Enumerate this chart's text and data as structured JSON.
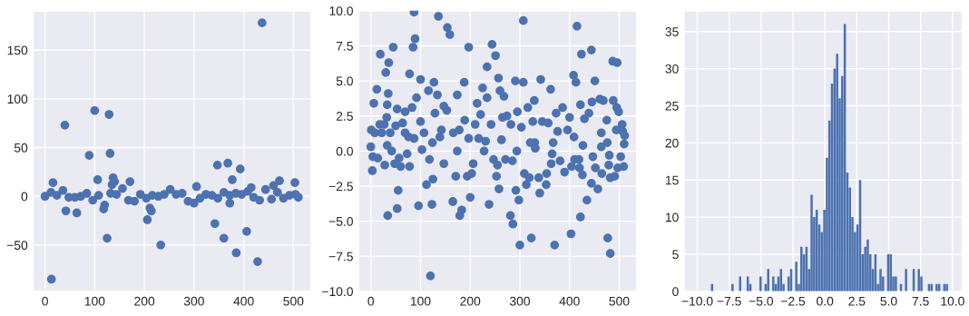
{
  "chart_data": [
    {
      "type": "scatter",
      "color": "#4c72b0",
      "marker": "circle",
      "grid": true,
      "xlim": [
        -24.3,
        535.8
      ],
      "ylim": [
        -97.5,
        190.4
      ],
      "xticks": [
        0,
        100,
        200,
        300,
        400,
        500
      ],
      "yticks": [
        {
          "value": -50,
          "label": "−50"
        },
        0,
        50,
        100,
        150
      ],
      "x": [
        0,
        12,
        24,
        36,
        48,
        60,
        72,
        84,
        96,
        108,
        120,
        132,
        144,
        156,
        168,
        180,
        192,
        204,
        216,
        228,
        240,
        252,
        264,
        276,
        288,
        300,
        312,
        324,
        336,
        348,
        360,
        372,
        384,
        396,
        408,
        420,
        432,
        444,
        456,
        468,
        480,
        492,
        504,
        510,
        13,
        16,
        40,
        42,
        64,
        89,
        100,
        106,
        118,
        125,
        129,
        131,
        137,
        140,
        135,
        171,
        206,
        211,
        214,
        233,
        342,
        347,
        360,
        368,
        372,
        377,
        385,
        393,
        406,
        428,
        437,
        460,
        472,
        503,
        415,
        305
      ],
      "values": [
        0,
        4,
        1,
        6,
        -1,
        -1,
        0,
        3,
        -4,
        1,
        -9,
        3,
        2,
        8,
        -4,
        -5,
        2,
        -2,
        1,
        0,
        2,
        7,
        2,
        3,
        -5,
        -7,
        -2,
        2,
        1,
        -2,
        4,
        1,
        3,
        2,
        5,
        -1,
        -4,
        7,
        -3,
        4,
        -2,
        1,
        2,
        -1,
        -85,
        14,
        73,
        -15,
        -17,
        42,
        88,
        17,
        -13,
        -43,
        84,
        44,
        19,
        15,
        12,
        15,
        -24,
        -12,
        -15,
        -50,
        -28,
        32,
        -43,
        34,
        -7,
        17,
        -58,
        28,
        -36,
        -67,
        178,
        11,
        16,
        14,
        9,
        10
      ]
    },
    {
      "type": "scatter",
      "color": "#4c72b0",
      "marker": "circle",
      "grid": true,
      "xlim": [
        -24.9,
        535.2
      ],
      "ylim": [
        -10,
        10
      ],
      "xticks": [
        0,
        100,
        200,
        300,
        400,
        500
      ],
      "yticks": [
        {
          "value": -10,
          "label": "−10.0"
        },
        {
          "value": -7.5,
          "label": "−7.5"
        },
        {
          "value": -5,
          "label": "−5.0"
        },
        {
          "value": -2.5,
          "label": "−2.5"
        },
        {
          "value": 0,
          "label": "0.0"
        },
        2.5,
        {
          "value": 5,
          "label": "5.0"
        },
        7.5,
        {
          "value": 10,
          "label": "10.0"
        }
      ],
      "x": [
        0,
        1,
        3,
        4,
        6,
        8,
        12,
        14,
        18,
        19,
        22,
        27,
        28,
        30,
        33,
        34,
        35,
        36,
        32,
        39,
        42,
        45,
        48,
        50,
        53,
        55,
        53,
        57,
        60,
        64,
        69,
        73,
        76,
        78,
        78,
        83,
        85,
        87,
        89,
        92,
        96,
        100,
        100,
        103,
        107,
        112,
        116,
        118,
        120,
        123,
        125,
        127,
        129,
        134,
        136,
        139,
        142,
        147,
        147,
        153,
        154,
        159,
        165,
        171,
        174,
        174,
        178,
        179,
        183,
        188,
        189,
        194,
        197,
        200,
        203,
        206,
        210,
        214,
        217,
        221,
        225,
        228,
        234,
        234,
        238,
        242,
        244,
        247,
        251,
        253,
        255,
        257,
        258,
        260,
        265,
        268,
        271,
        274,
        281,
        282,
        285,
        286,
        291,
        292,
        295,
        298,
        300,
        303,
        307,
        307,
        309,
        313,
        316,
        319,
        323,
        326,
        329,
        331,
        338,
        340,
        342,
        345,
        353,
        354,
        357,
        362,
        363,
        365,
        370,
        373,
        376,
        381,
        386,
        390,
        396,
        400,
        403,
        404,
        408,
        410,
        413,
        415,
        419,
        420,
        422,
        422,
        424,
        426,
        430,
        435,
        439,
        444,
        444,
        445,
        447,
        451,
        452,
        457,
        461,
        464,
        465,
        468,
        475,
        477,
        479,
        480,
        482,
        482,
        487,
        488,
        491,
        494,
        495,
        496,
        497,
        499,
        503,
        506,
        507,
        509,
        510,
        511,
        69,
        197,
        263,
        330,
        409,
        464,
        124,
        231,
        294,
        367,
        427,
        476,
        33,
        87,
        166,
        321
      ],
      "values": [
        0.3,
        1.5,
        -1.4,
        -0.4,
        3.4,
        1.3,
        4.4,
        -0.5,
        1.9,
        6.9,
        1.3,
        1.9,
        -1.0,
        5.6,
        3.3,
        -4.6,
        4.1,
        6.3,
        2.4,
        1.3,
        0.0,
        7.4,
        -0.9,
        1.8,
        -4.1,
        -2.8,
        3.0,
        -0.5,
        -1.1,
        2.0,
        2.8,
        -0.2,
        1.0,
        5.5,
        -1.1,
        3.1,
        7.4,
        9.9,
        8.0,
        3.8,
        -3.9,
        5.1,
        2.1,
        0.1,
        1.3,
        -2.4,
        4.3,
        -0.6,
        -8.9,
        -3.8,
        -2.0,
        4.9,
        2.7,
        4.0,
        9.6,
        1.0,
        1.5,
        3.2,
        -0.9,
        2.9,
        8.8,
        8.3,
        -3.6,
        -1.8,
        4.0,
        0.0,
        1.5,
        -4.6,
        -4.2,
        4.9,
        2.2,
        -1.8,
        7.4,
        -3.3,
        -1.6,
        -0.9,
        1.9,
        3.4,
        0.9,
        2.6,
        4.5,
        0.0,
        3.8,
        6.0,
        -3.8,
        1.9,
        7.6,
        -0.6,
        6.8,
        -1.8,
        -1.0,
        5.2,
        -2.7,
        4.3,
        2.4,
        3.9,
        -0.6,
        2.5,
        -4.6,
        1.9,
        -0.7,
        -5.2,
        5.0,
        -2.8,
        2.8,
        -3.5,
        -6.7,
        1.7,
        4.9,
        9.3,
        -1.6,
        -2.4,
        3.1,
        -1.9,
        -6.2,
        2.1,
        3.6,
        0.2,
        -1.9,
        -3.0,
        5.1,
        2.1,
        -2.4,
        -1.6,
        2.0,
        4.4,
        -0.9,
        -0.2,
        -6.7,
        2.7,
        1.4,
        -0.7,
        3.1,
        -1.5,
        1.5,
        2.4,
        -5.9,
        -1.1,
        5.4,
        -0.6,
        4.9,
        8.9,
        -0.6,
        -1.2,
        -4.7,
        3.3,
        6.9,
        -1.7,
        2.3,
        -3.5,
        2.7,
        7.2,
        -2.3,
        3.5,
        -0.4,
        5.0,
        -1.2,
        -2.7,
        3.7,
        0.3,
        -1.6,
        3.6,
        2.2,
        -6.2,
        -1.0,
        -0.3,
        -1.9,
        -7.3,
        6.4,
        3.6,
        -1.8,
        1.5,
        3.1,
        6.3,
        -1.2,
        2.8,
        -0.4,
        1.9,
        1.4,
        -1.1,
        0.5,
        1.1,
        1.3,
        0.9,
        0.8,
        0.6,
        1.0,
        1.3,
        0.6,
        0.7,
        0.0,
        0.6,
        0.4,
        0.6,
        0.4,
        0.9,
        1.3,
        0.6
      ]
    },
    {
      "type": "histogram",
      "color": "#4c72b0",
      "grid": true,
      "xlim": [
        -11.04,
        10.76
      ],
      "ylim": [
        0,
        37.8
      ],
      "xticks": [
        {
          "value": -10,
          "label": "−10.0"
        },
        {
          "value": -7.5,
          "label": "−7.5"
        },
        {
          "value": -5,
          "label": "−5.0"
        },
        {
          "value": -2.5,
          "label": "−2.5"
        },
        {
          "value": 0,
          "label": "0.0"
        },
        2.5,
        {
          "value": 5,
          "label": "5.0"
        },
        7.5,
        {
          "value": 10,
          "label": "10.0"
        }
      ],
      "yticks": [
        0,
        5,
        10,
        15,
        20,
        25,
        30,
        35
      ],
      "bins": [
        -8.94,
        -8.74,
        -8.54,
        -8.34,
        -8.14,
        -7.94,
        -7.74,
        -7.54,
        -7.34,
        -7.14,
        -6.94,
        -6.74,
        -6.54,
        -6.34,
        -6.14,
        -5.94,
        -5.74,
        -5.54,
        -5.34,
        -5.14,
        -4.94,
        -4.74,
        -4.54,
        -4.34,
        -4.14,
        -3.94,
        -3.74,
        -3.54,
        -3.34,
        -3.14,
        -2.94,
        -2.74,
        -2.54,
        -2.34,
        -2.14,
        -1.94,
        -1.74,
        -1.54,
        -1.34,
        -1.14,
        -0.94,
        -0.74,
        -0.54,
        -0.34,
        -0.14,
        0.06,
        0.26,
        0.46,
        0.66,
        0.86,
        1.06,
        1.26,
        1.46,
        1.66,
        1.86,
        2.06,
        2.26,
        2.46,
        2.66,
        2.86,
        3.06,
        3.26,
        3.46,
        3.66,
        3.86,
        4.06,
        4.26,
        4.46,
        4.66,
        4.86,
        5.06,
        5.26,
        5.46,
        5.66,
        5.86,
        6.06,
        6.26,
        6.46,
        6.66,
        6.86,
        7.06,
        7.26,
        7.46,
        7.66,
        7.86,
        8.06,
        8.26,
        8.46,
        8.66,
        8.86,
        9.06,
        9.26,
        9.46,
        9.66,
        9.86
      ],
      "values": [
        1,
        0,
        0,
        0,
        0,
        0,
        0,
        0,
        1,
        0,
        0,
        2,
        0,
        0,
        2,
        1,
        0,
        0,
        0,
        2,
        0,
        1,
        3,
        0,
        2,
        1,
        2,
        3,
        1,
        0,
        2,
        3,
        0,
        4,
        1,
        6,
        5,
        6,
        3,
        13,
        10,
        11,
        9,
        8,
        11,
        18,
        23,
        28,
        30,
        32,
        26,
        29,
        36,
        16,
        14,
        10,
        8,
        9,
        15,
        5,
        6,
        7,
        5,
        3,
        5,
        1,
        3,
        2,
        0,
        5,
        5,
        2,
        2,
        0,
        1,
        0,
        3,
        0,
        0,
        3,
        0,
        3,
        2,
        0,
        0,
        1,
        1,
        0,
        1,
        1,
        0,
        1,
        1,
        0
      ]
    }
  ]
}
